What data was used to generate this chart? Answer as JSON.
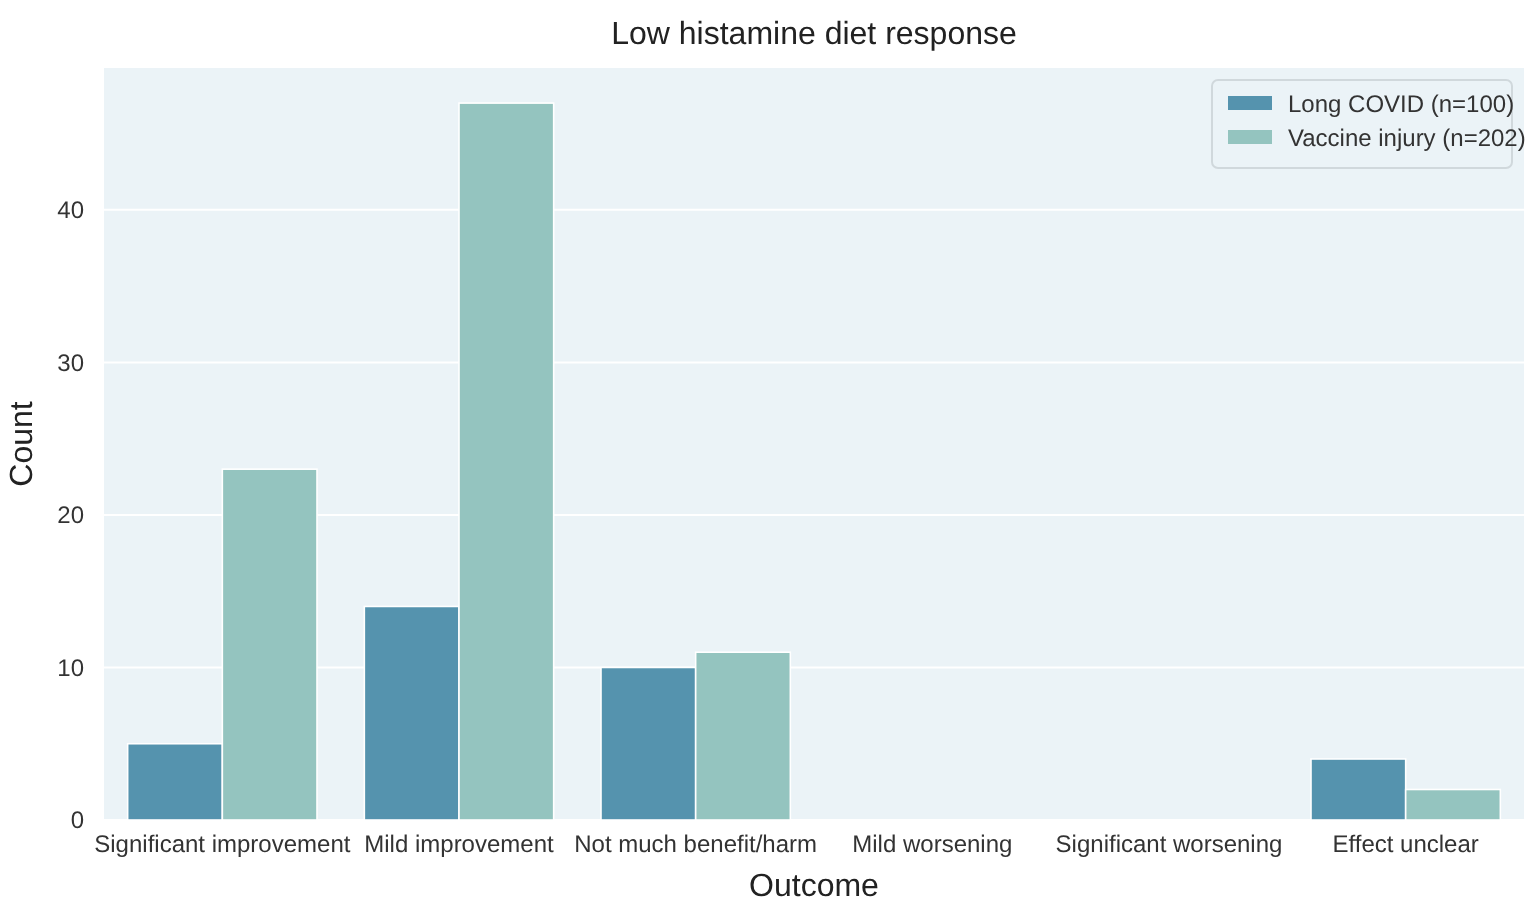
{
  "chart_data": {
    "type": "bar",
    "title": "Low histamine diet response",
    "xlabel": "Outcome",
    "ylabel": "Count",
    "categories": [
      "Significant improvement",
      "Mild improvement",
      "Not much benefit/harm",
      "Mild worsening",
      "Significant worsening",
      "Effect unclear"
    ],
    "series": [
      {
        "name": "Long COVID (n=100)",
        "color": "#5593ae",
        "values": [
          5,
          14,
          10,
          0,
          0,
          4
        ]
      },
      {
        "name": "Vaccine injury (n=202)",
        "color": "#94c4bf",
        "values": [
          23,
          47,
          11,
          0,
          0,
          2
        ]
      }
    ],
    "ylim": [
      0,
      49.3
    ],
    "yticks": [
      0,
      10,
      20,
      30,
      40
    ],
    "grid": "y",
    "legend": "top right"
  }
}
